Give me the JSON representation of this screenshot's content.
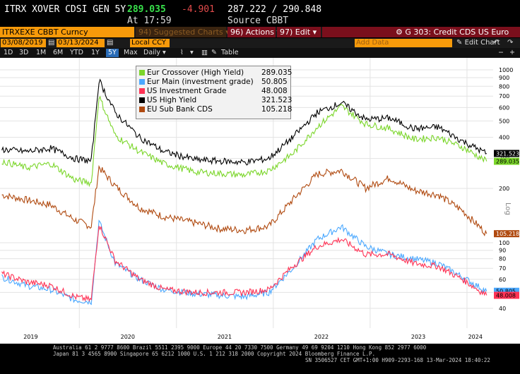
{
  "header": {
    "title": "ITRX XOVER CDSI GEN 5Y",
    "last": "289.035",
    "change": "-4.901",
    "range": "287.222 / 290.848",
    "at_time": "At 17:59",
    "source": "Source CBBT"
  },
  "toolbar": {
    "ticker_field": "ITRXEXE CBBT Curncy",
    "suggested_charts": "94) Suggested Charts ▾",
    "actions": "96) Actions ▾",
    "edit": "97) Edit ▾",
    "chart_name": "G 303: Credit CDS US Euro"
  },
  "dates": {
    "start": "03/08/2019",
    "end": "03/13/2024",
    "currency": "Local CCY",
    "add_data": "Add Data",
    "edit_chart": "Edit Chart"
  },
  "periods": [
    "1D",
    "3D",
    "1M",
    "6M",
    "YTD",
    "1Y",
    "5Y",
    "Max",
    "Daily ▾"
  ],
  "selected_period": "5Y",
  "table_label": "Table",
  "log_label": "Log",
  "chart_data": {
    "type": "line",
    "y_scale": "log",
    "upper_panel_ticks": [
      "1000",
      "900",
      "800",
      "700",
      "600",
      "500",
      "400",
      "300",
      "200"
    ],
    "lower_panel_ticks": [
      "100",
      "90",
      "80",
      "70",
      "60",
      "50",
      "40"
    ],
    "x_ticks": [
      "2019",
      "2020",
      "2021",
      "2022",
      "2023",
      "2024"
    ],
    "series": [
      {
        "name": "Eur Crossover (High Yield)",
        "last": "289.035",
        "color": "#7bd62a",
        "x": [
          "2019-03",
          "2019-06",
          "2019-09",
          "2019-12",
          "2020-02",
          "2020-03",
          "2020-05",
          "2020-08",
          "2020-11",
          "2021-03",
          "2021-06",
          "2021-09",
          "2021-12",
          "2022-03",
          "2022-06",
          "2022-09",
          "2022-12",
          "2023-03",
          "2023-06",
          "2023-09",
          "2023-12",
          "2024-03"
        ],
        "y": [
          290,
          265,
          280,
          225,
          215,
          700,
          410,
          330,
          280,
          250,
          245,
          240,
          255,
          320,
          460,
          610,
          480,
          450,
          390,
          400,
          350,
          289
        ]
      },
      {
        "name": "Eur Main (investment grade)",
        "last": "50.805",
        "color": "#4aa8ff",
        "x": [
          "2019-03",
          "2019-06",
          "2019-09",
          "2019-12",
          "2020-02",
          "2020-03",
          "2020-05",
          "2020-08",
          "2020-11",
          "2021-03",
          "2021-06",
          "2021-09",
          "2021-12",
          "2022-03",
          "2022-06",
          "2022-09",
          "2022-12",
          "2023-03",
          "2023-06",
          "2023-09",
          "2023-12",
          "2024-03"
        ],
        "y": [
          62,
          55,
          52,
          45,
          44,
          135,
          75,
          60,
          52,
          49,
          48,
          47,
          50,
          70,
          105,
          125,
          95,
          85,
          80,
          75,
          62,
          50.8
        ]
      },
      {
        "name": "US Investment Grade",
        "last": "48.008",
        "color": "#ff3355",
        "x": [
          "2019-03",
          "2019-06",
          "2019-09",
          "2019-12",
          "2020-02",
          "2020-03",
          "2020-05",
          "2020-08",
          "2020-11",
          "2021-03",
          "2021-06",
          "2021-09",
          "2021-12",
          "2022-03",
          "2022-06",
          "2022-09",
          "2022-12",
          "2023-03",
          "2023-06",
          "2023-09",
          "2023-12",
          "2024-03"
        ],
        "y": [
          65,
          58,
          55,
          47,
          45,
          130,
          78,
          60,
          52,
          50,
          50,
          50,
          52,
          72,
          95,
          105,
          85,
          85,
          75,
          72,
          60,
          48
        ]
      },
      {
        "name": "US High Yield",
        "last": "321.523",
        "color": "#000000",
        "x": [
          "2019-03",
          "2019-06",
          "2019-09",
          "2019-12",
          "2020-02",
          "2020-03",
          "2020-05",
          "2020-08",
          "2020-11",
          "2021-03",
          "2021-06",
          "2021-09",
          "2021-12",
          "2022-03",
          "2022-06",
          "2022-09",
          "2022-12",
          "2023-03",
          "2023-06",
          "2023-09",
          "2023-12",
          "2024-03"
        ],
        "y": [
          340,
          330,
          345,
          300,
          290,
          870,
          560,
          400,
          330,
          295,
          290,
          285,
          300,
          400,
          560,
          640,
          510,
          520,
          450,
          460,
          380,
          321.5
        ]
      },
      {
        "name": "EU Sub Bank CDS",
        "last": "105.218",
        "color": "#b04a10",
        "x": [
          "2019-03",
          "2019-06",
          "2019-09",
          "2019-12",
          "2020-02",
          "2020-03",
          "2020-05",
          "2020-08",
          "2020-11",
          "2021-03",
          "2021-06",
          "2021-09",
          "2021-12",
          "2022-03",
          "2022-06",
          "2022-09",
          "2022-12",
          "2023-03",
          "2023-06",
          "2023-09",
          "2023-12",
          "2024-03"
        ],
        "y": [
          170,
          160,
          150,
          125,
          115,
          240,
          190,
          145,
          130,
          120,
          112,
          110,
          115,
          160,
          220,
          230,
          185,
          210,
          180,
          170,
          140,
          105.2
        ]
      }
    ]
  },
  "footer": {
    "line1": "Australia 61 2 9777 8600 Brazil 5511 2395 9000 Europe 44 20 7330 7500 Germany 49 69 9204 1210 Hong Kong 852 2977 6000",
    "line2": "Japan 81 3 4565 8900        Singapore 65 6212 1000        U.S. 1 212 318 2000             Copyright 2024 Bloomberg Finance L.P.",
    "line3": "SN 3506527 CET  GMT+1:00 H909-2293-168 13-Mar-2024 18:40:22"
  }
}
